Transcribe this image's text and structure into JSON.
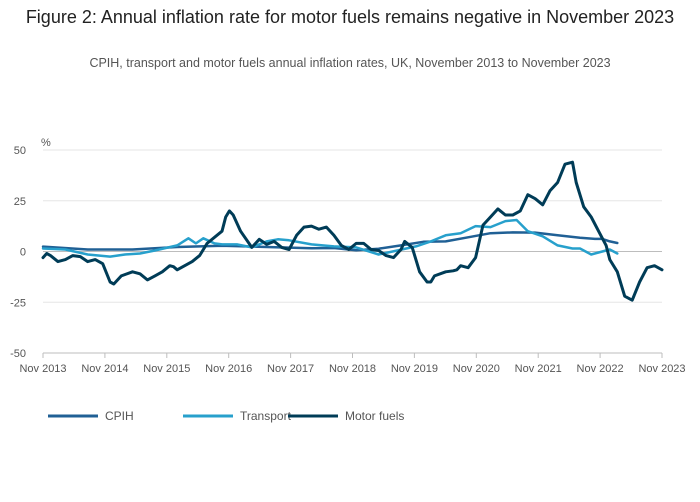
{
  "title": "Figure 2: Annual inflation rate for motor fuels remains negative in November 2023",
  "subtitle": "CPIH, transport and motor fuels annual inflation rates, UK, November 2013 to November 2023",
  "chart_data": {
    "type": "line",
    "title": "Figure 2: Annual inflation rate for motor fuels remains negative in November 2023",
    "subtitle": "CPIH, transport and motor fuels annual inflation rates, UK, November 2013 to November 2023",
    "ylabel": "%",
    "xlabel": "",
    "ylim": [
      -50,
      50
    ],
    "yticks": [
      50,
      25,
      0,
      -25,
      -50
    ],
    "grid": true,
    "legend_position": "bottom-left",
    "x_tick_labels": [
      "Nov 2013",
      "Nov 2014",
      "Nov 2015",
      "Nov 2016",
      "Nov 2017",
      "Nov 2018",
      "Nov 2019",
      "Nov 2020",
      "Nov 2021",
      "Nov 2022",
      "Nov 2023"
    ],
    "x_start": "Nov 2013",
    "x_end": "Nov 2023",
    "series": [
      {
        "name": "CPIH",
        "color": "#206095",
        "points": [
          [
            0,
            2.4
          ],
          [
            12,
            1.0
          ],
          [
            24,
            1.0
          ],
          [
            36,
            2.2
          ],
          [
            48,
            2.8
          ],
          [
            60,
            2.2
          ],
          [
            72,
            1.6
          ],
          [
            78,
            1.7
          ],
          [
            84,
            0.6
          ],
          [
            90,
            1.4
          ],
          [
            96,
            3.0
          ],
          [
            102,
            4.8
          ],
          [
            108,
            5.0
          ],
          [
            114,
            7.0
          ],
          [
            120,
            9.0
          ],
          [
            126,
            9.4
          ],
          [
            132,
            9.3
          ],
          [
            138,
            8.0
          ],
          [
            144,
            6.8
          ],
          [
            148,
            6.2
          ],
          [
            150,
            6.2
          ],
          [
            152,
            5.0
          ],
          [
            154,
            4.2
          ]
        ]
      },
      {
        "name": "Transport",
        "color": "#27a0cc",
        "points": [
          [
            0,
            1.5
          ],
          [
            6,
            1.0
          ],
          [
            12,
            -1.5
          ],
          [
            18,
            -2.5
          ],
          [
            22,
            -1.5
          ],
          [
            26,
            -1.0
          ],
          [
            30,
            0.5
          ],
          [
            36,
            3.0
          ],
          [
            39,
            6.5
          ],
          [
            41,
            4.0
          ],
          [
            43,
            6.5
          ],
          [
            46,
            4.0
          ],
          [
            48,
            3.5
          ],
          [
            52,
            3.5
          ],
          [
            56,
            2.0
          ],
          [
            60,
            5.0
          ],
          [
            63,
            6.0
          ],
          [
            66,
            5.5
          ],
          [
            72,
            3.5
          ],
          [
            78,
            2.5
          ],
          [
            84,
            2.0
          ],
          [
            90,
            -1.5
          ],
          [
            95,
            0.5
          ],
          [
            100,
            2.5
          ],
          [
            104,
            5.0
          ],
          [
            108,
            8.0
          ],
          [
            112,
            9.0
          ],
          [
            116,
            12.5
          ],
          [
            120,
            12.0
          ],
          [
            124,
            15.0
          ],
          [
            127,
            15.5
          ],
          [
            130,
            10.0
          ],
          [
            134,
            7.5
          ],
          [
            138,
            3.0
          ],
          [
            142,
            1.5
          ],
          [
            144,
            1.5
          ],
          [
            147,
            -1.5
          ],
          [
            150,
            0.0
          ],
          [
            152,
            1.0
          ],
          [
            154,
            -1.0
          ]
        ]
      },
      {
        "name": "Motor fuels",
        "color": "#003c57",
        "points": [
          [
            0,
            -3.0
          ],
          [
            1,
            -1.0
          ],
          [
            2,
            -2.0
          ],
          [
            4,
            -5.0
          ],
          [
            6,
            -4.0
          ],
          [
            8,
            -2.0
          ],
          [
            10,
            -2.5
          ],
          [
            12,
            -5.0
          ],
          [
            14,
            -4.0
          ],
          [
            16,
            -6.0
          ],
          [
            18,
            -15.0
          ],
          [
            19,
            -16.0
          ],
          [
            21,
            -12.0
          ],
          [
            24,
            -10.0
          ],
          [
            26,
            -11.0
          ],
          [
            28,
            -14.0
          ],
          [
            30,
            -12.0
          ],
          [
            32,
            -10.0
          ],
          [
            34,
            -7.0
          ],
          [
            35,
            -7.5
          ],
          [
            36,
            -9.0
          ],
          [
            38,
            -7.0
          ],
          [
            40,
            -5.0
          ],
          [
            42,
            -2.0
          ],
          [
            44,
            4.0
          ],
          [
            48,
            10.0
          ],
          [
            49,
            17.0
          ],
          [
            50,
            20.0
          ],
          [
            51,
            18.0
          ],
          [
            53,
            10.0
          ],
          [
            56,
            2.0
          ],
          [
            58,
            6.0
          ],
          [
            60,
            3.5
          ],
          [
            62,
            5.0
          ],
          [
            64,
            2.0
          ],
          [
            66,
            1.0
          ],
          [
            68,
            8.0
          ],
          [
            70,
            12.0
          ],
          [
            72,
            12.5
          ],
          [
            74,
            11.0
          ],
          [
            76,
            12.0
          ],
          [
            78,
            8.0
          ],
          [
            80,
            3.0
          ],
          [
            82,
            1.0
          ],
          [
            84,
            4.0
          ],
          [
            86,
            4.0
          ],
          [
            88,
            1.0
          ],
          [
            90,
            0.5
          ],
          [
            92,
            -2.0
          ],
          [
            94,
            -3.0
          ],
          [
            96,
            1.0
          ],
          [
            97,
            5.0
          ],
          [
            99,
            2.0
          ],
          [
            101,
            -10.0
          ],
          [
            103,
            -15.0
          ],
          [
            104,
            -15.0
          ],
          [
            105,
            -12.0
          ],
          [
            108,
            -10.0
          ],
          [
            110,
            -9.5
          ],
          [
            111,
            -9.0
          ],
          [
            112,
            -7.0
          ],
          [
            114,
            -8.0
          ],
          [
            116,
            -3.0
          ],
          [
            118,
            13.0
          ],
          [
            120,
            17.0
          ],
          [
            122,
            21.0
          ],
          [
            124,
            18.0
          ],
          [
            126,
            18.0
          ],
          [
            128,
            20.0
          ],
          [
            130,
            28.0
          ],
          [
            132,
            26.0
          ],
          [
            134,
            23.0
          ],
          [
            136,
            30.0
          ],
          [
            138,
            34.0
          ],
          [
            140,
            43.0
          ],
          [
            142,
            44.0
          ],
          [
            143,
            34.0
          ],
          [
            145,
            22.0
          ],
          [
            147,
            17.0
          ],
          [
            149,
            10.0
          ],
          [
            151,
            3.0
          ],
          [
            152,
            -4.0
          ],
          [
            154,
            -10.0
          ],
          [
            156,
            -22.0
          ],
          [
            158,
            -24.0
          ],
          [
            160,
            -15.0
          ],
          [
            162,
            -8.0
          ],
          [
            164,
            -7.0
          ],
          [
            166,
            -9.0
          ]
        ]
      }
    ]
  },
  "legend": [
    {
      "label": "CPIH",
      "color": "#206095"
    },
    {
      "label": "Transport",
      "color": "#27a0cc"
    },
    {
      "label": "Motor fuels",
      "color": "#003c57"
    }
  ]
}
